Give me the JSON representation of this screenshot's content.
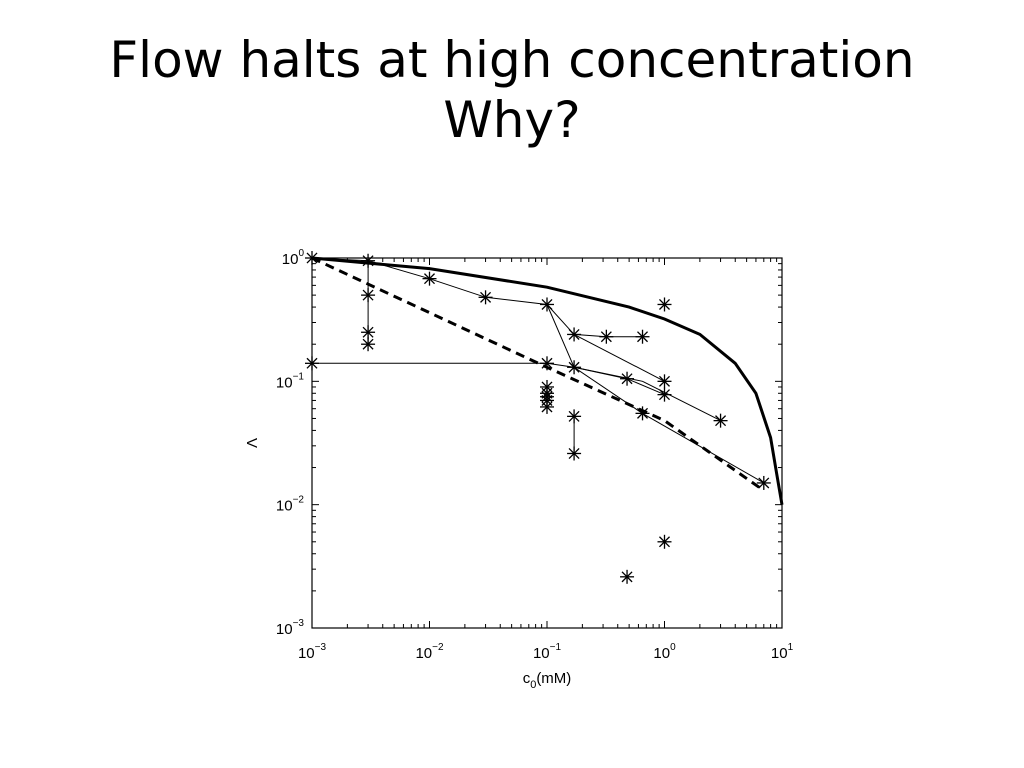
{
  "slide": {
    "title_line1": "Flow halts at high concentration",
    "title_line2": "Why?"
  },
  "chart_data": {
    "type": "scatter",
    "xscale": "log",
    "yscale": "log",
    "xlim": [
      0.001,
      10
    ],
    "ylim": [
      0.001,
      1
    ],
    "xlabel": "c0(mM)",
    "ylabel": "Λ",
    "x_ticks": [
      {
        "base": "10",
        "exp": "−3",
        "value": 0.001
      },
      {
        "base": "10",
        "exp": "−2",
        "value": 0.01
      },
      {
        "base": "10",
        "exp": "−1",
        "value": 0.1
      },
      {
        "base": "10",
        "exp": "0",
        "value": 1
      },
      {
        "base": "10",
        "exp": "1",
        "value": 10
      }
    ],
    "y_ticks": [
      {
        "base": "10",
        "exp": "0",
        "value": 1
      },
      {
        "base": "10",
        "exp": "−1",
        "value": 0.1
      },
      {
        "base": "10",
        "exp": "−2",
        "value": 0.01
      },
      {
        "base": "10",
        "exp": "−3",
        "value": 0.001
      }
    ],
    "grid": false,
    "legend": "none",
    "theory_solid": {
      "style": "solid-thick",
      "x": [
        0.001,
        0.01,
        0.1,
        0.5,
        1,
        2,
        4,
        6,
        8,
        9,
        10
      ],
      "y": [
        1.0,
        0.82,
        0.58,
        0.4,
        0.32,
        0.24,
        0.14,
        0.08,
        0.035,
        0.018,
        0.01
      ]
    },
    "theory_dashed": {
      "style": "dashed-thick",
      "x": [
        0.001,
        0.1,
        1,
        7
      ],
      "y": [
        1.0,
        0.13,
        0.048,
        0.013
      ]
    },
    "connected_series": [
      {
        "x": [
          0.001,
          0.003,
          0.01,
          0.03,
          0.1,
          0.17,
          0.32,
          0.65
        ],
        "y": [
          1.0,
          0.95,
          0.68,
          0.48,
          0.42,
          0.24,
          0.23,
          0.23
        ]
      },
      {
        "x": [
          0.003,
          0.003,
          0.003,
          0.003
        ],
        "y": [
          0.95,
          0.5,
          0.25,
          0.2
        ]
      },
      {
        "x": [
          0.001,
          0.1,
          0.17,
          0.48,
          1.0
        ],
        "y": [
          0.14,
          0.14,
          0.13,
          0.105,
          0.078
        ]
      },
      {
        "x": [
          0.17,
          0.65,
          3.0
        ],
        "y": [
          0.13,
          0.1,
          0.048
        ]
      },
      {
        "x": [
          0.1,
          0.17,
          0.65,
          7.0
        ],
        "y": [
          0.42,
          0.13,
          0.055,
          0.015
        ]
      },
      {
        "x": [
          0.17,
          1.0
        ],
        "y": [
          0.24,
          0.1
        ]
      },
      {
        "x": [
          0.17,
          0.17
        ],
        "y": [
          0.052,
          0.026
        ]
      },
      {
        "x": [
          0.1,
          0.1
        ],
        "y": [
          0.09,
          0.07
        ]
      }
    ],
    "points": [
      {
        "x": 0.001,
        "y": 1.0
      },
      {
        "x": 0.003,
        "y": 0.95
      },
      {
        "x": 0.003,
        "y": 0.5
      },
      {
        "x": 0.003,
        "y": 0.25
      },
      {
        "x": 0.003,
        "y": 0.2
      },
      {
        "x": 0.01,
        "y": 0.68
      },
      {
        "x": 0.03,
        "y": 0.48
      },
      {
        "x": 0.1,
        "y": 0.42
      },
      {
        "x": 0.17,
        "y": 0.24
      },
      {
        "x": 0.32,
        "y": 0.23
      },
      {
        "x": 0.65,
        "y": 0.23
      },
      {
        "x": 1.0,
        "y": 0.42
      },
      {
        "x": 0.001,
        "y": 0.14
      },
      {
        "x": 0.1,
        "y": 0.14
      },
      {
        "x": 0.17,
        "y": 0.13
      },
      {
        "x": 0.48,
        "y": 0.105
      },
      {
        "x": 1.0,
        "y": 0.1
      },
      {
        "x": 1.0,
        "y": 0.078
      },
      {
        "x": 0.65,
        "y": 0.055
      },
      {
        "x": 3.0,
        "y": 0.048
      },
      {
        "x": 0.1,
        "y": 0.09
      },
      {
        "x": 0.1,
        "y": 0.08
      },
      {
        "x": 0.1,
        "y": 0.075
      },
      {
        "x": 0.1,
        "y": 0.07
      },
      {
        "x": 0.1,
        "y": 0.062
      },
      {
        "x": 0.17,
        "y": 0.052
      },
      {
        "x": 0.17,
        "y": 0.026
      },
      {
        "x": 7.0,
        "y": 0.015
      },
      {
        "x": 1.0,
        "y": 0.005
      },
      {
        "x": 0.48,
        "y": 0.0026
      }
    ]
  }
}
